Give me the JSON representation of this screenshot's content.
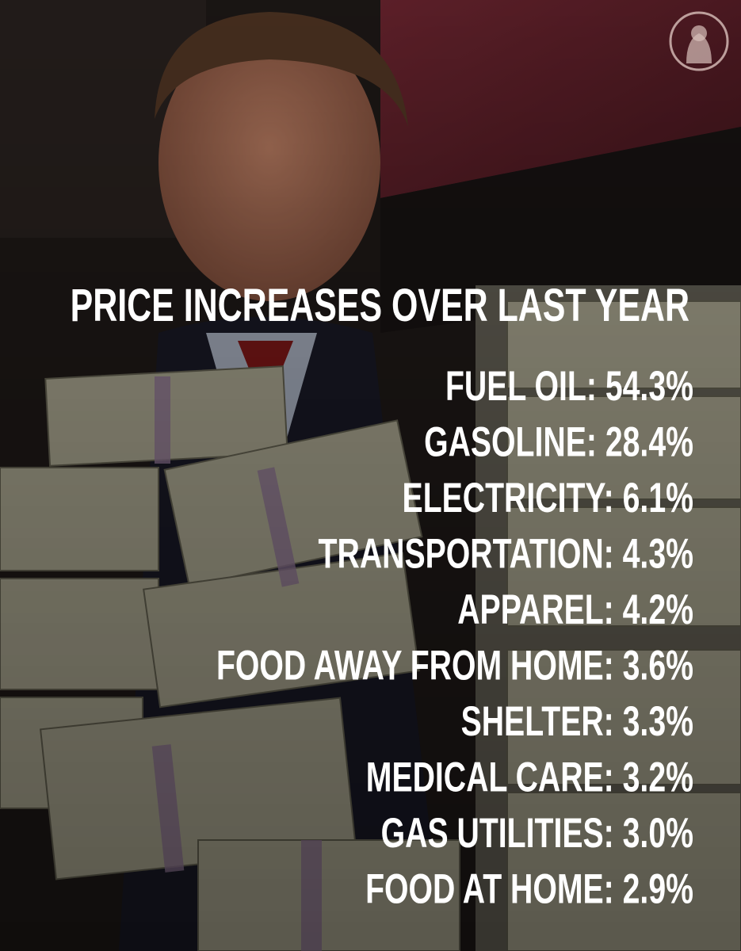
{
  "title": "PRICE INCREASES OVER LAST YEAR",
  "items": [
    "FUEL OIL: 54.3%",
    "GASOLINE: 28.4%",
    "ELECTRICITY: 6.1%",
    "TRANSPORTATION: 4.3%",
    "APPAREL: 4.2%",
    "FOOD AWAY FROM HOME: 3.6%",
    "SHELTER: 3.3%",
    "MEDICAL CARE: 3.2%",
    "GAS UTILITIES: 3.0%",
    "FOOD AT HOME: 2.9%"
  ]
}
